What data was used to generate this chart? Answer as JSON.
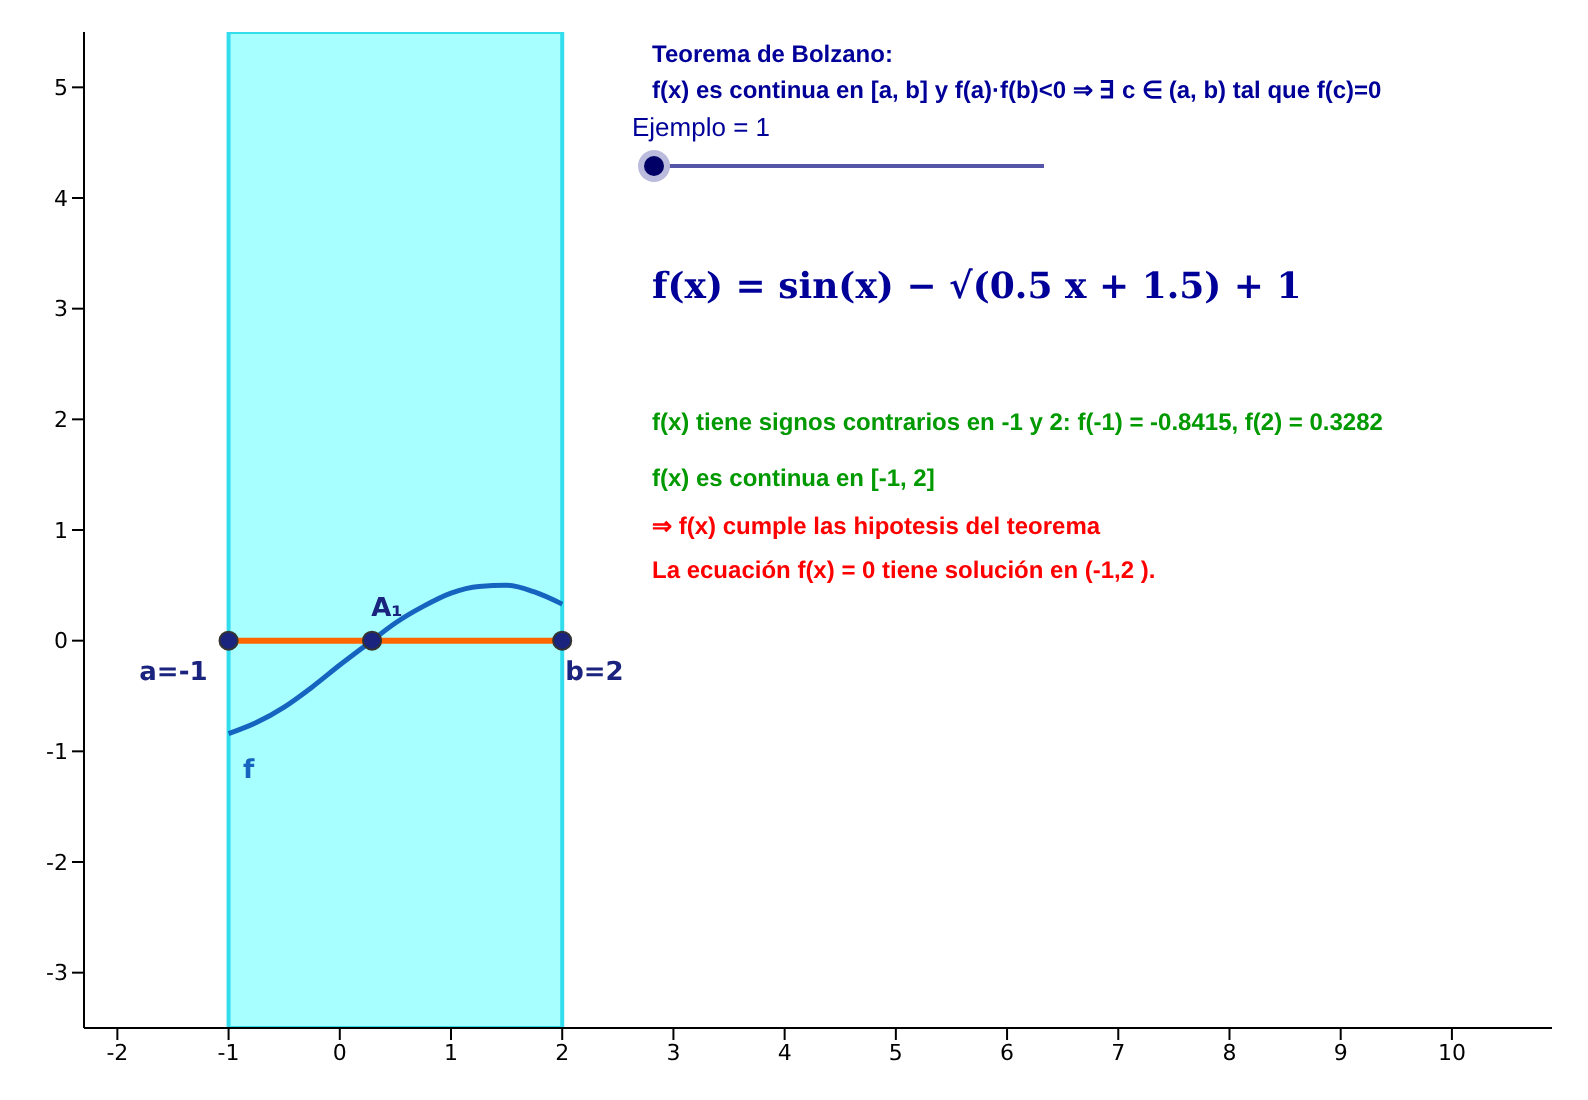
{
  "chart_data": {
    "type": "line",
    "xlim": [
      -2.3,
      10.9
    ],
    "ylim": [
      -3.5,
      5.5
    ],
    "xticks": [
      -2,
      -1,
      0,
      1,
      2,
      3,
      4,
      5,
      6,
      7,
      8,
      9,
      10
    ],
    "yticks": [
      -3,
      -2,
      -1,
      0,
      1,
      2,
      3,
      4,
      5
    ],
    "grid": false,
    "legend": false,
    "marker": "circle",
    "bands": [
      {
        "axis": "x",
        "from": -1,
        "to": 2,
        "color": "#99ffff"
      }
    ],
    "series": [
      {
        "name": "f",
        "marker": "none",
        "color": "#1565c0",
        "x": [
          -1,
          -0.75,
          -0.5,
          -0.25,
          0,
          0.25,
          0.5,
          0.75,
          1,
          1.25,
          1.5,
          1.75,
          2
        ],
        "values": [
          -0.84,
          -0.74,
          -0.6,
          -0.42,
          -0.22,
          -0.03,
          0.16,
          0.31,
          0.43,
          0.49,
          0.5,
          0.44,
          0.33
        ]
      },
      {
        "type": "line",
        "marker": "none",
        "color": "#ff6600",
        "x": [
          -1,
          2
        ],
        "values": [
          0,
          0
        ]
      },
      {
        "name": "a=-1",
        "type": "scatter",
        "color": "#1a237e",
        "x": [
          -1
        ],
        "values": [
          0
        ]
      },
      {
        "name": "b=2",
        "type": "scatter",
        "color": "#1a237e",
        "x": [
          2
        ],
        "values": [
          0
        ]
      },
      {
        "name": "A₁",
        "type": "scatter",
        "color": "#1a237e",
        "x": [
          0.29
        ],
        "values": [
          0
        ]
      }
    ],
    "annotations": [
      "Teorema de Bolzano:",
      "f(x) es continua en [a, b] y f(a)·f(b)<0  ⇒  ∃ c ∈ (a, b) tal que f(c)=0",
      "Ejemplo = 1",
      "f(x) = sin(x) − √(0.5 x + 1.5) + 1",
      "f(x) tiene signos contrarios en -1 y 2:   f(-1) = -0.8415,   f(2) = 0.3282",
      "f(x) es continua en [-1, 2]",
      "⇒ f(x) cumple las hipotesis del teorema",
      "La ecuación f(x) = 0 tiene solución en (-1,2 )."
    ]
  }
}
